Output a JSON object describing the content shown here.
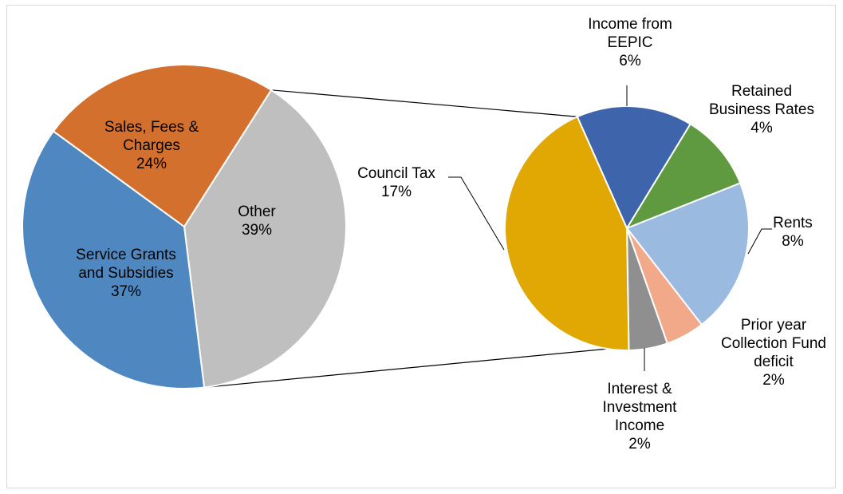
{
  "chart_data": {
    "type": "pie",
    "subtype": "pie-of-pie",
    "title": "",
    "primary": {
      "slices": [
        {
          "name": "Other",
          "label_lines": [
            "Other"
          ],
          "value_label": "39%",
          "value": 39,
          "color": "#BFBFBF"
        },
        {
          "name": "Service Grants and Subsidies",
          "label_lines": [
            "Service Grants",
            "and Subsidies"
          ],
          "value_label": "37%",
          "value": 37,
          "color": "#4F88C1"
        },
        {
          "name": "Sales, Fees & Charges",
          "label_lines": [
            "Sales, Fees &",
            "Charges"
          ],
          "value_label": "24%",
          "value": 24,
          "color": "#D4702D"
        }
      ]
    },
    "secondary": {
      "expands": "Other",
      "slices": [
        {
          "name": "Income from EEPIC",
          "label_lines": [
            "Income from",
            "EEPIC"
          ],
          "value_label": "6%",
          "value": 6,
          "color": "#3E64AC"
        },
        {
          "name": "Retained Business Rates",
          "label_lines": [
            "Retained",
            "Business Rates"
          ],
          "value_label": "4%",
          "value": 4,
          "color": "#5F9A40"
        },
        {
          "name": "Rents",
          "label_lines": [
            "Rents"
          ],
          "value_label": "8%",
          "value": 8,
          "color": "#9BBAE0"
        },
        {
          "name": "Prior year Collection Fund deficit",
          "label_lines": [
            "Prior year",
            "Collection Fund",
            "deficit"
          ],
          "value_label": "2%",
          "value": 2,
          "color": "#F1A98A"
        },
        {
          "name": "Interest & Investment Income",
          "label_lines": [
            "Interest &",
            "Investment",
            "Income"
          ],
          "value_label": "2%",
          "value": 2,
          "color": "#8F8F8F"
        },
        {
          "name": "Council Tax",
          "label_lines": [
            "Council Tax"
          ],
          "value_label": "17%",
          "value": 17,
          "color": "#E1A703"
        }
      ]
    }
  }
}
